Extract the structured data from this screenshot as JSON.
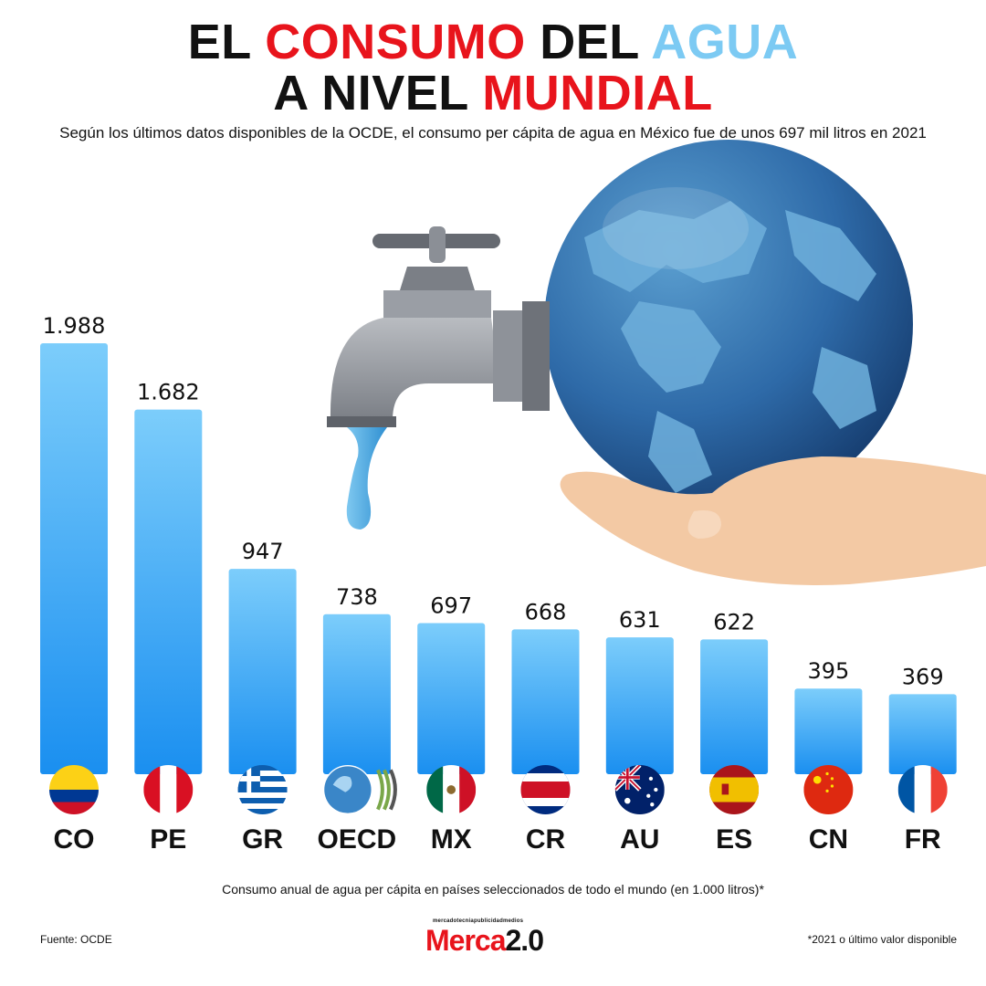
{
  "title": {
    "line1_part1": "EL",
    "line1_part2": "CONSUMO",
    "line1_part3": "DEL",
    "line1_part4": "AGUA",
    "line2_part1": "A NIVEL",
    "line2_part2": "MUNDIAL"
  },
  "subtitle": "Según los últimos datos disponibles de la OCDE, el consumo per cápita de agua en México fue de unos 697 mil litros en 2021",
  "colors": {
    "title_red": "#e8141c",
    "title_blue": "#7ccaf3",
    "bar_top": "#7ccdfb",
    "bar_bottom": "#1a8ff0"
  },
  "chart_data": {
    "type": "bar",
    "categories": [
      "CO",
      "PE",
      "GR",
      "OECD",
      "MX",
      "CR",
      "AU",
      "ES",
      "CN",
      "FR"
    ],
    "values": [
      1988,
      1682,
      947,
      738,
      697,
      668,
      631,
      622,
      395,
      369
    ],
    "value_labels": [
      "1.988",
      "1.682",
      "947",
      "738",
      "697",
      "668",
      "631",
      "622",
      "395",
      "369"
    ],
    "flags": [
      "colombia-flag",
      "peru-flag",
      "greece-flag",
      "oecd-logo",
      "mexico-flag",
      "costa-rica-flag",
      "australia-flag",
      "spain-flag",
      "china-flag",
      "france-flag"
    ],
    "xlabel": "Consumo anual de agua per cápita en países seleccionados de todo el mundo (en 1.000 litros)*",
    "ylim": [
      0,
      1988
    ],
    "grid": false
  },
  "footer": {
    "source": "Fuente: OCDE",
    "note": "*2021 o último valor disponible",
    "logo_small": "mercadotecniapublicidadmedios",
    "logo_main": "Merca",
    "logo_version": "2.0"
  }
}
